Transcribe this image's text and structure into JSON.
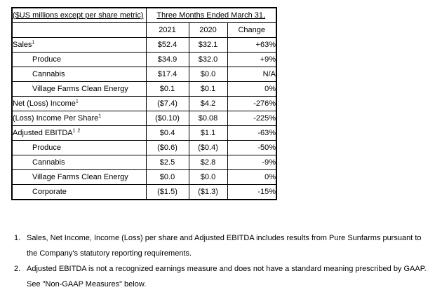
{
  "table": {
    "header": {
      "left_label": "($US millions except per share metric)",
      "span_title": "Three Months Ended March 31,",
      "year_2021": "2021",
      "year_2020": "2020",
      "change_label": "Change"
    },
    "rows": [
      {
        "label": "Sales",
        "sup": "1",
        "y2021": "$52.4",
        "y2020": "$32.1",
        "change": "+63%"
      },
      {
        "label": "Produce",
        "sup": "",
        "y2021": "$34.9",
        "y2020": "$32.0",
        "change": "+9%"
      },
      {
        "label": "Cannabis",
        "sup": "",
        "y2021": "$17.4",
        "y2020": "$0.0",
        "change": "N/A"
      },
      {
        "label": "Village Farms Clean Energy",
        "sup": "",
        "y2021": "$0.1",
        "y2020": "$0.1",
        "change": "0%"
      },
      {
        "label": "Net (Loss) Income",
        "sup": "1",
        "y2021": "($7.4)",
        "y2020": "$4.2",
        "change": "-276%"
      },
      {
        "label": "(Loss) Income Per Share",
        "sup": "1",
        "y2021": "($0.10)",
        "y2020": "$0.08",
        "change": "-225%"
      },
      {
        "label": "Adjusted EBITDA",
        "sup": "1 2",
        "y2021": "$0.4",
        "y2020": "$1.1",
        "change": "-63%"
      },
      {
        "label": "Produce",
        "sup": "",
        "y2021": "($0.6)",
        "y2020": "($0.4)",
        "change": "-50%"
      },
      {
        "label": "Cannabis",
        "sup": "",
        "y2021": "$2.5",
        "y2020": "$2.8",
        "change": "-9%"
      },
      {
        "label": "Village Farms Clean Energy",
        "sup": "",
        "y2021": "$0.0",
        "y2020": "$0.0",
        "change": "0%"
      },
      {
        "label": "Corporate",
        "sup": "",
        "y2021": "($1.5)",
        "y2020": "($1.3)",
        "change": "-15%"
      }
    ]
  },
  "footnotes": [
    {
      "number": "1.",
      "lines": [
        "Sales, Net Income, Income (Loss) per share and Adjusted EBITDA includes results from Pure Sunfarms pursuant to",
        "the Company's statutory reporting requirements."
      ]
    },
    {
      "number": "2.",
      "lines": [
        "Adjusted EBITDA is not a recognized earnings measure and does not have a standard meaning prescribed by GAAP.",
        "See \"Non-GAAP Measures\" below."
      ]
    }
  ]
}
